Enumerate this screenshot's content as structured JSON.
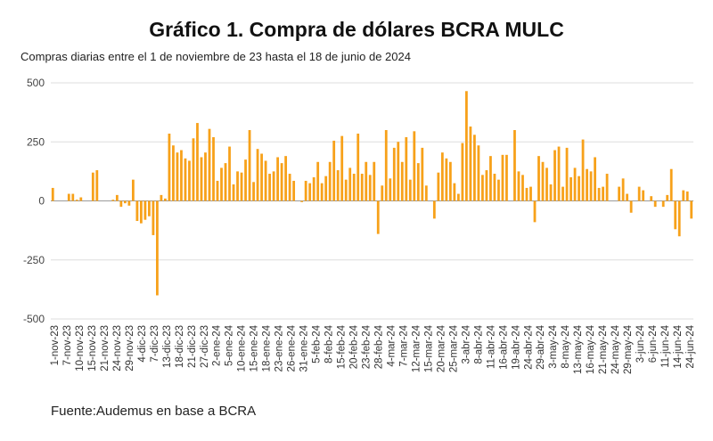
{
  "chart_data": {
    "type": "bar",
    "title": "Gráfico 1. Compra de dólares BCRA MULC",
    "subtitle": "Compras diarias entre el 1 de noviembre de 23 hasta el 18 de junio de 2024",
    "source": "Fuente:Audemus en base a BCRA",
    "xlabel": "",
    "ylabel": "",
    "ylim": [
      -500,
      500
    ],
    "yticks": [
      500,
      250,
      0,
      -250,
      -500
    ],
    "ytick_labels": [
      "500",
      "250",
      "0",
      "-250",
      "-500"
    ],
    "grid": "horizontal",
    "bar_color": "#F7A11A",
    "x_tick_labels": [
      "1-nov-23",
      "7-nov-23",
      "10-nov-23",
      "15-nov-23",
      "21-nov-23",
      "24-nov-23",
      "29-nov-23",
      "4-dic-23",
      "7-dic-23",
      "13-dic-23",
      "18-dic-23",
      "21-dic-23",
      "27-dic-23",
      "2-ene-24",
      "5-ene-24",
      "10-ene-24",
      "15-ene-24",
      "18-ene-24",
      "23-ene-24",
      "26-ene-24",
      "31-ene-24",
      "5-feb-24",
      "8-feb-24",
      "15-feb-24",
      "20-feb-24",
      "23-feb-24",
      "28-feb-24",
      "4-mar-24",
      "7-mar-24",
      "12-mar-24",
      "15-mar-24",
      "20-mar-24",
      "25-mar-24",
      "3-abr-24",
      "8-abr-24",
      "11-abr-24",
      "16-abr-24",
      "19-abr-24",
      "24-abr-24",
      "29-abr-24",
      "3-may-24",
      "8-may-24",
      "13-may-24",
      "16-may-24",
      "21-may-24",
      "24-may-24",
      "29-may-24",
      "3-jun-24",
      "6-jun-24",
      "11-jun-24",
      "14-jun-24",
      "24-jun-24"
    ],
    "values": [
      55,
      0,
      0,
      0,
      30,
      30,
      5,
      15,
      0,
      0,
      120,
      130,
      0,
      0,
      0,
      5,
      25,
      -25,
      -10,
      -20,
      90,
      -85,
      -95,
      -80,
      -65,
      -145,
      -400,
      25,
      10,
      285,
      235,
      205,
      215,
      180,
      170,
      265,
      330,
      185,
      205,
      305,
      270,
      85,
      140,
      160,
      230,
      70,
      125,
      120,
      175,
      300,
      80,
      220,
      200,
      170,
      115,
      125,
      185,
      160,
      190,
      115,
      85,
      0,
      -5,
      85,
      75,
      100,
      165,
      75,
      105,
      165,
      255,
      130,
      275,
      90,
      140,
      115,
      285,
      115,
      165,
      110,
      165,
      -140,
      65,
      300,
      95,
      225,
      250,
      165,
      270,
      90,
      295,
      160,
      225,
      65,
      0,
      -75,
      120,
      205,
      180,
      165,
      75,
      30,
      245,
      465,
      315,
      280,
      235,
      110,
      130,
      190,
      115,
      90,
      195,
      195,
      0,
      300,
      125,
      110,
      55,
      60,
      -90,
      190,
      165,
      140,
      70,
      215,
      230,
      60,
      225,
      100,
      140,
      105,
      260,
      135,
      125,
      185,
      55,
      60,
      115,
      0,
      0,
      60,
      95,
      30,
      -50,
      0,
      60,
      45,
      0,
      20,
      -25,
      0,
      -25,
      25,
      135,
      -120,
      -150,
      45,
      40,
      -75
    ]
  }
}
